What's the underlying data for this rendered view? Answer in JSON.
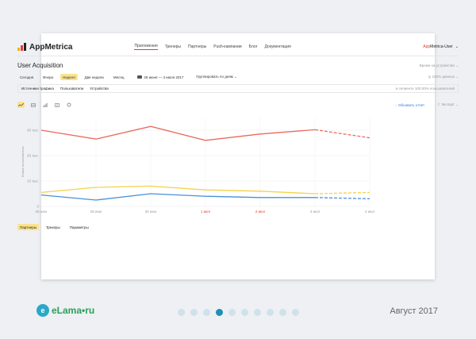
{
  "app": {
    "brand": "AppMetrica",
    "nav": [
      "Приложения",
      "Тренеры",
      "Партнеры",
      "Push-кампании",
      "Блог",
      "Документация"
    ],
    "user_first": "App",
    "user_rest": "Metrica-User",
    "user_caret": "⌄"
  },
  "report": {
    "title": "User Acquisition",
    "time_select": "Время на устройстве ⌄",
    "periods": [
      "Сегодня",
      "Вчера",
      "Неделя",
      "Две недели",
      "Месяц"
    ],
    "date_range": "26 июня — 4 июля 2017",
    "group_by": "Группировать по дням ⌄",
    "data_pct": "◎ 100% данных ⌄",
    "filters": [
      "Источники трафика",
      "Пользователи",
      "Устройства"
    ],
    "sample": "в сегменте 100.00% пользователей",
    "refresh": "◌ Обновить отчёт",
    "export": "⇪ Экспорт ⌄",
    "bottom_tabs": [
      "Партнеры",
      "Трекеры",
      "Параметры"
    ]
  },
  "icons": {
    "tools": [
      "line-chart-icon",
      "table-icon",
      "bar-chart-icon",
      "grid-icon",
      "settings-icon"
    ]
  },
  "colors": {
    "accent_red": "#e63c2e",
    "highlight": "#fbe38b",
    "series_red": "#ea6a5e",
    "series_yellow": "#f5d24a",
    "series_blue": "#4a90d9",
    "brand_blue": "#1f8fb6"
  },
  "chart_data": {
    "type": "line",
    "ylabel": "Новые пользователи",
    "y_ticks": [
      "30 тыс.",
      "20 тыс.",
      "10 тыс.",
      "0"
    ],
    "ylim": [
      0,
      35000
    ],
    "x": [
      "26 июн",
      "28 июн",
      "30 июн",
      "1 июл",
      "2 июл",
      "3 июл",
      "4 июл"
    ],
    "x_weekend": [
      false,
      false,
      false,
      true,
      true,
      false,
      false
    ],
    "series": [
      {
        "color": "#ea6a5e",
        "values": [
          30000,
          26500,
          31500,
          26000,
          28500,
          30200,
          27000
        ]
      },
      {
        "color": "#f5d24a",
        "values": [
          5500,
          7500,
          8000,
          6500,
          6000,
          5000,
          5500
        ]
      },
      {
        "color": "#4a90d9",
        "values": [
          4500,
          2500,
          5000,
          4000,
          3500,
          3500,
          3000
        ]
      }
    ],
    "forecast_from_index": 5
  },
  "footer": {
    "logo_badge": "e",
    "logo_text": "eLama•ru",
    "pagination_count": 10,
    "pagination_active": 3,
    "date_label": "Август 2017"
  }
}
